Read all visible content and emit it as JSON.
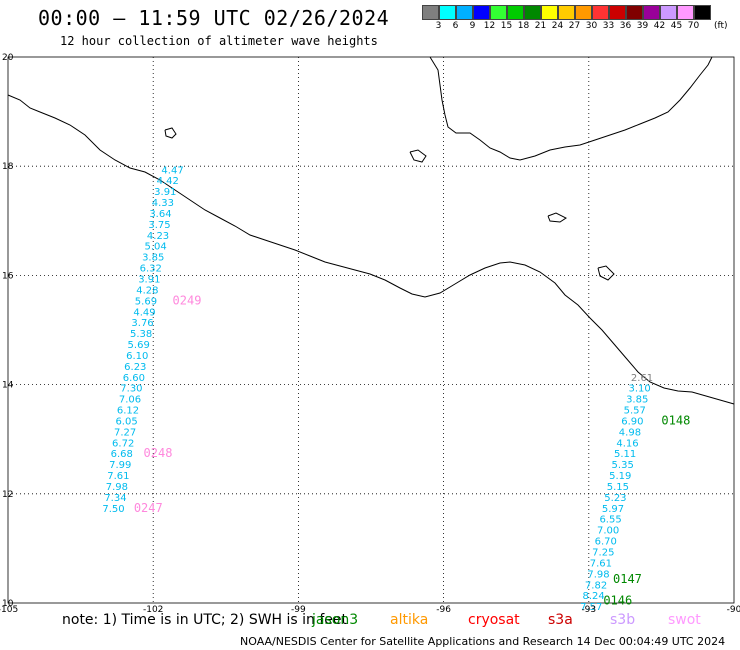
{
  "title": "00:00 – 11:59 UTC 02/26/2024",
  "subtitle": "12 hour collection of altimeter wave heights",
  "legend": {
    "colors": [
      "#7f7f7f",
      "#00ffff",
      "#00b0ff",
      "#0000ff",
      "#33ff33",
      "#00cc00",
      "#008800",
      "#ffff00",
      "#ffcc00",
      "#ff9900",
      "#ff3333",
      "#cc0000",
      "#800000",
      "#990099",
      "#cc99ff",
      "#ff99ff",
      "#000000"
    ],
    "labels": [
      "3",
      "6",
      "9",
      "12",
      "15",
      "18",
      "21",
      "24",
      "27",
      "30",
      "33",
      "36",
      "39",
      "42",
      "45",
      "70"
    ],
    "unit": "(ft)"
  },
  "axes": {
    "lon_labels": [
      "-105",
      "-102",
      "-99",
      "-96",
      "-93",
      "-90"
    ],
    "lat_labels": [
      "20",
      "18",
      "16",
      "14",
      "12",
      "10"
    ]
  },
  "tracks": [
    {
      "color": "#00bbee",
      "points": [
        {
          "lon": -101.6,
          "lat": 17.87,
          "v": "4.47"
        },
        {
          "lon": -101.7,
          "lat": 17.67,
          "v": "4.42"
        },
        {
          "lon": -101.75,
          "lat": 17.47,
          "v": "3.91"
        },
        {
          "lon": -101.8,
          "lat": 17.27,
          "v": "4.33"
        },
        {
          "lon": -101.85,
          "lat": 17.07,
          "v": "3.64"
        },
        {
          "lon": -101.87,
          "lat": 16.87,
          "v": "3.75"
        },
        {
          "lon": -101.9,
          "lat": 16.67,
          "v": "4.23"
        },
        {
          "lon": -101.95,
          "lat": 16.47,
          "v": "5.04"
        },
        {
          "lon": -102.0,
          "lat": 16.27,
          "v": "3.85"
        },
        {
          "lon": -102.05,
          "lat": 16.07,
          "v": "6.32"
        },
        {
          "lon": -102.08,
          "lat": 15.87,
          "v": "3.91"
        },
        {
          "lon": -102.12,
          "lat": 15.67,
          "v": "4.28"
        },
        {
          "lon": -102.15,
          "lat": 15.47,
          "v": "5.69"
        },
        {
          "lon": -102.18,
          "lat": 15.27,
          "v": "4.49"
        },
        {
          "lon": -102.22,
          "lat": 15.07,
          "v": "3.76"
        },
        {
          "lon": -102.25,
          "lat": 14.87,
          "v": "5.38"
        },
        {
          "lon": -102.3,
          "lat": 14.67,
          "v": "5.69"
        },
        {
          "lon": -102.33,
          "lat": 14.47,
          "v": "6.10"
        },
        {
          "lon": -102.37,
          "lat": 14.27,
          "v": "6.23"
        },
        {
          "lon": -102.4,
          "lat": 14.07,
          "v": "6.60"
        },
        {
          "lon": -102.45,
          "lat": 13.87,
          "v": "7.30"
        },
        {
          "lon": -102.48,
          "lat": 13.67,
          "v": "7.06"
        },
        {
          "lon": -102.52,
          "lat": 13.47,
          "v": "6.12"
        },
        {
          "lon": -102.55,
          "lat": 13.27,
          "v": "6.05"
        },
        {
          "lon": -102.58,
          "lat": 13.07,
          "v": "7.27"
        },
        {
          "lon": -102.62,
          "lat": 12.87,
          "v": "6.72"
        },
        {
          "lon": -102.65,
          "lat": 12.67,
          "v": "6.68"
        },
        {
          "lon": -102.68,
          "lat": 12.47,
          "v": "7.99"
        },
        {
          "lon": -102.72,
          "lat": 12.27,
          "v": "7.61"
        },
        {
          "lon": -102.75,
          "lat": 12.07,
          "v": "7.98"
        },
        {
          "lon": -102.78,
          "lat": 11.87,
          "v": "7.34"
        },
        {
          "lon": -102.82,
          "lat": 11.67,
          "v": "7.50"
        }
      ]
    },
    {
      "color": "#00bbee",
      "points": [
        {
          "lon": -91.9,
          "lat": 14.07,
          "v": "2.61",
          "c": "#7f7f7f"
        },
        {
          "lon": -91.95,
          "lat": 13.87,
          "v": "3.10"
        },
        {
          "lon": -92.0,
          "lat": 13.67,
          "v": "3.85"
        },
        {
          "lon": -92.05,
          "lat": 13.47,
          "v": "5.57"
        },
        {
          "lon": -92.1,
          "lat": 13.27,
          "v": "6.90"
        },
        {
          "lon": -92.15,
          "lat": 13.07,
          "v": "4.98"
        },
        {
          "lon": -92.2,
          "lat": 12.87,
          "v": "4.16"
        },
        {
          "lon": -92.25,
          "lat": 12.67,
          "v": "5.11"
        },
        {
          "lon": -92.3,
          "lat": 12.47,
          "v": "5.35"
        },
        {
          "lon": -92.35,
          "lat": 12.27,
          "v": "5.19"
        },
        {
          "lon": -92.4,
          "lat": 12.07,
          "v": "5.15"
        },
        {
          "lon": -92.45,
          "lat": 11.87,
          "v": "5.23"
        },
        {
          "lon": -92.5,
          "lat": 11.67,
          "v": "5.97"
        },
        {
          "lon": -92.55,
          "lat": 11.47,
          "v": "6.55"
        },
        {
          "lon": -92.6,
          "lat": 11.27,
          "v": "7.00"
        },
        {
          "lon": -92.65,
          "lat": 11.07,
          "v": "6.70"
        },
        {
          "lon": -92.7,
          "lat": 10.87,
          "v": "7.25"
        },
        {
          "lon": -92.75,
          "lat": 10.67,
          "v": "7.61"
        },
        {
          "lon": -92.8,
          "lat": 10.47,
          "v": "7.98"
        },
        {
          "lon": -92.85,
          "lat": 10.27,
          "v": "7.82"
        },
        {
          "lon": -92.9,
          "lat": 10.07,
          "v": "8.24"
        },
        {
          "lon": -92.95,
          "lat": 9.87,
          "v": "7.57"
        }
      ]
    }
  ],
  "time_tags": [
    {
      "lon": -101.6,
      "lat": 15.47,
      "v": "0249",
      "c": "#ff88dd"
    },
    {
      "lon": -102.2,
      "lat": 12.67,
      "v": "0248",
      "c": "#ff88dd"
    },
    {
      "lon": -102.4,
      "lat": 11.67,
      "v": "0247",
      "c": "#ff88dd"
    },
    {
      "lon": -91.5,
      "lat": 13.27,
      "v": "0148",
      "c": "#008800"
    },
    {
      "lon": -92.5,
      "lat": 10.37,
      "v": "0147",
      "c": "#008800"
    },
    {
      "lon": -92.7,
      "lat": 9.97,
      "v": "0146",
      "c": "#008800"
    }
  ],
  "note": "note:  1) Time is in UTC; 2) SWH is in feet",
  "satellites": [
    {
      "name": "jason3",
      "color": "#008800"
    },
    {
      "name": "altika",
      "color": "#ff9900"
    },
    {
      "name": "cryosat",
      "color": "#ff0000"
    },
    {
      "name": "s3a",
      "color": "#cc0000"
    },
    {
      "name": "s3b",
      "color": "#cc99ff"
    },
    {
      "name": "swot",
      "color": "#ff99ff"
    }
  ],
  "credit": "NOAA/NESDIS Center for Satellite Applications and Research    14 Dec 00:04:49 UTC 2024"
}
